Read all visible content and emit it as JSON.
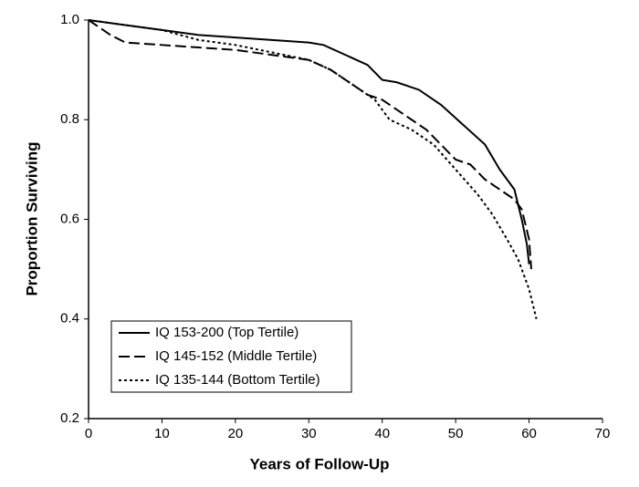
{
  "chart_data": {
    "type": "line",
    "x_label": "Years of Follow-Up",
    "y_label": "Proportion Surviving",
    "xlim": [
      0,
      70
    ],
    "xticks": [
      0,
      10,
      20,
      30,
      40,
      50,
      60,
      70
    ],
    "ylim": [
      0.2,
      1
    ],
    "yticks": [
      0.2,
      0.4,
      0.6,
      0.8,
      {
        "value": 1,
        "label": "1.0"
      }
    ],
    "legend": "lower left",
    "series": [
      {
        "name": "IQ 153-200 (Top Tertile)",
        "color": "#000000",
        "line_style": "solid",
        "x": [
          0,
          5,
          10,
          15,
          20,
          25,
          30,
          32,
          35,
          38,
          40,
          42,
          45,
          48,
          51,
          54,
          56,
          58,
          59,
          59.7,
          60
        ],
        "values": [
          1,
          0.99,
          0.98,
          0.97,
          0.965,
          0.96,
          0.955,
          0.95,
          0.93,
          0.91,
          0.88,
          0.875,
          0.86,
          0.83,
          0.79,
          0.75,
          0.7,
          0.66,
          0.6,
          0.55,
          0.51
        ]
      },
      {
        "name": "IQ 145-152 (Middle Tertile)",
        "color": "#000000",
        "line_style": "dashed",
        "x": [
          0,
          3,
          5,
          10,
          15,
          20,
          25,
          30,
          33,
          36,
          38,
          40,
          42,
          44,
          46,
          48,
          50,
          52,
          54,
          56,
          58,
          59,
          60,
          60.3
        ],
        "values": [
          1,
          0.97,
          0.955,
          0.95,
          0.945,
          0.94,
          0.93,
          0.92,
          0.9,
          0.87,
          0.85,
          0.84,
          0.82,
          0.8,
          0.78,
          0.75,
          0.72,
          0.71,
          0.68,
          0.66,
          0.64,
          0.62,
          0.56,
          0.5
        ]
      },
      {
        "name": "IQ 135-144 (Bottom Tertile)",
        "color": "#000000",
        "line_style": "dotted",
        "x": [
          0,
          5,
          10,
          15,
          20,
          25,
          30,
          33,
          36,
          39,
          41,
          44,
          47,
          50,
          53,
          55,
          57,
          58.5,
          59,
          60,
          61
        ],
        "values": [
          1,
          0.99,
          0.98,
          0.96,
          0.95,
          0.935,
          0.92,
          0.9,
          0.87,
          0.84,
          0.8,
          0.78,
          0.75,
          0.7,
          0.65,
          0.61,
          0.56,
          0.52,
          0.5,
          0.46,
          0.4
        ]
      }
    ]
  }
}
